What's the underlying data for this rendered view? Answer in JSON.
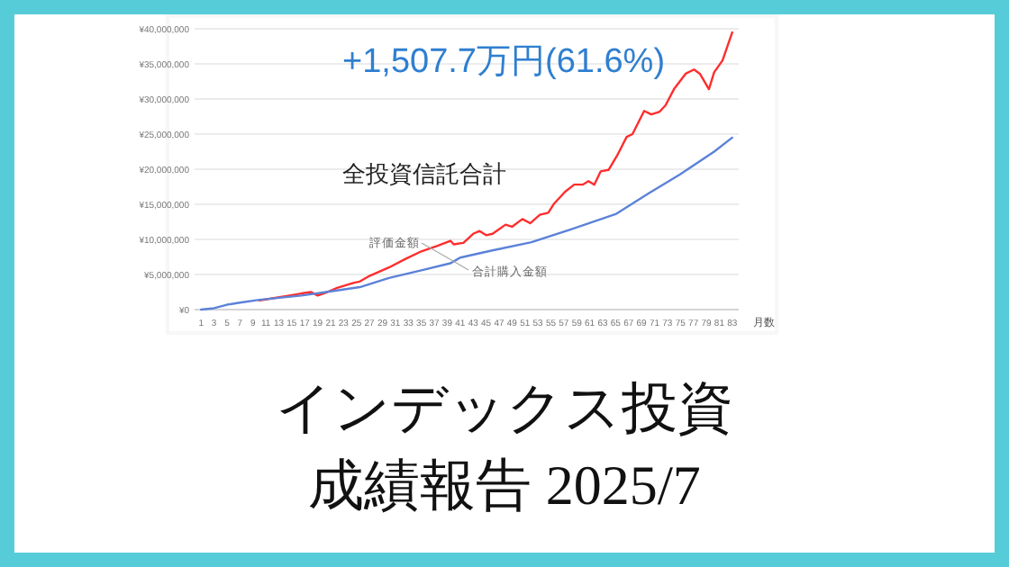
{
  "chart_data": {
    "type": "line",
    "title": "インデックス投資",
    "subtitle": "成績報告 2025/7",
    "xlabel": "月数",
    "annotations": [
      "+1,507.7万円(61.6%)",
      "全投資信託合計"
    ],
    "series": [
      {
        "name": "評価金額",
        "color": "#ff2d2d",
        "x": [
          10,
          12,
          14,
          16.5,
          18,
          19,
          20.5,
          22,
          24.5,
          25.5,
          27,
          30,
          32.5,
          35,
          37.5,
          39.5,
          40,
          41.5,
          43,
          44,
          45,
          46,
          48,
          49,
          50.6,
          51.8,
          53.3,
          54.6,
          55.5,
          57.2,
          58.6,
          59.9,
          60.8,
          61.7,
          62.7,
          63.9,
          65.2,
          66.7,
          67.6,
          69.4,
          70.5,
          71.8,
          72.7,
          74,
          75.8,
          77.1,
          78,
          79.4,
          80.2,
          81.5,
          83
        ],
        "values": [
          1300000.0,
          1600000.0,
          1900000.0,
          2300000.0,
          2500000.0,
          2000000.0,
          2500000.0,
          3100000.0,
          3800000.0,
          4000000.0,
          4800000.0,
          6000000.0,
          7200000.0,
          8300000.0,
          9100000.0,
          9800000.0,
          9300000.0,
          9500000.0,
          10800000.0,
          11200000.0,
          10600000.0,
          10800000.0,
          12100000.0,
          11800000.0,
          12900000.0,
          12300000.0,
          13500000.0,
          13800000.0,
          15100000.0,
          16800000.0,
          17800000.0,
          17800000.0,
          18300000.0,
          17800000.0,
          19700000.0,
          19900000.0,
          21900000.0,
          24600000.0,
          25000000.0,
          28300000.0,
          27800000.0,
          28200000.0,
          29100000.0,
          31400000.0,
          33600000.0,
          34200000.0,
          33600000.0,
          31400000.0,
          33800000.0,
          35500000.0,
          39500000.0
        ]
      },
      {
        "name": "合計購入金額",
        "color": "#5b82d8",
        "x": [
          1,
          3,
          5,
          7,
          10,
          16.5,
          21,
          25.5,
          30,
          35,
          39.5,
          41,
          45.8,
          52,
          58,
          65,
          70,
          75,
          80.2,
          83
        ],
        "values": [
          0,
          200000.0,
          700000.0,
          1000000.0,
          1400000.0,
          2000000.0,
          2600000.0,
          3200000.0,
          4500000.0,
          5600000.0,
          6600000.0,
          7400000.0,
          8400000.0,
          9600000.0,
          11400000.0,
          13600000.0,
          16500000.0,
          19300000.0,
          22500000.0,
          24500000.0
        ]
      }
    ],
    "xlim": [
      0,
      84
    ],
    "xticks": [
      1,
      3,
      5,
      7,
      9,
      11,
      13,
      15,
      17,
      19,
      21,
      23,
      25,
      27,
      29,
      31,
      33,
      35,
      37,
      39,
      41,
      43,
      45,
      47,
      49,
      51,
      53,
      55,
      57,
      59,
      61,
      63,
      65,
      67,
      69,
      71,
      73,
      75,
      77,
      79,
      81,
      83
    ],
    "ylim": [
      0,
      40000000
    ],
    "yticks": [
      {
        "value": 0,
        "label": "¥0"
      },
      {
        "value": 5000000,
        "label": "¥5,000,000"
      },
      {
        "value": 10000000,
        "label": "¥10,000,000"
      },
      {
        "value": 15000000,
        "label": "¥15,000,000"
      },
      {
        "value": 20000000,
        "label": "¥20,000,000"
      },
      {
        "value": 25000000,
        "label": "¥25,000,000"
      },
      {
        "value": 30000000,
        "label": "¥30,000,000"
      },
      {
        "value": 35000000,
        "label": "¥35,000,000"
      },
      {
        "value": 40000000,
        "label": "¥40,000,000"
      }
    ],
    "grid": "y"
  }
}
